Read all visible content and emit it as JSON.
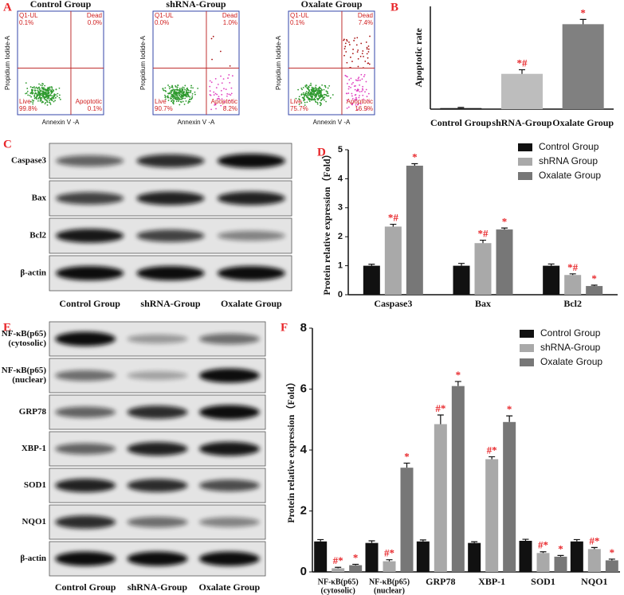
{
  "panel_labels": [
    "A",
    "B",
    "C",
    "D",
    "E",
    "F"
  ],
  "flow_panels": [
    {
      "title": "Control Group",
      "x_label": "Annexin V -A",
      "y_label": "Propidium Iodide-A",
      "quadrants": {
        "ul": [
          "Q1-UL",
          "0.1%"
        ],
        "ur": [
          "Dead",
          "0.0%"
        ],
        "ll": [
          "Live",
          "99.8%"
        ],
        "lr": [
          "Apoptotic",
          "0.1%"
        ]
      }
    },
    {
      "title": "shRNA-Group",
      "x_label": "Annexin V -A",
      "y_label": "Propidium Iodide-A",
      "quadrants": {
        "ul": [
          "Q1-UL",
          "0.0%"
        ],
        "ur": [
          "Dead",
          "1.0%"
        ],
        "ll": [
          "Live",
          "90.7%"
        ],
        "lr": [
          "Apoptotic",
          "8.2%"
        ]
      }
    },
    {
      "title": "Oxalate Group",
      "x_label": "Annexin V -A",
      "y_label": "Propidium Iodide-A",
      "quadrants": {
        "ul": [
          "Q1-UL",
          "0.1%"
        ],
        "ur": [
          "Dead",
          "7.4%"
        ],
        "ll": [
          "Live",
          "75.7%"
        ],
        "lr": [
          "Apoptotic",
          "16.9%"
        ]
      }
    }
  ],
  "blots": [
    {
      "rows": [
        [
          "Caspase3"
        ],
        [
          "Bax"
        ],
        [
          "Bcl2"
        ],
        [
          "β-actin"
        ]
      ],
      "columns": [
        "Control Group",
        "shRNA-Group",
        "Oxalate Group"
      ]
    },
    {
      "rows": [
        [
          "NF-κB(p65)",
          "(cytosolic)"
        ],
        [
          "NF-κB(p65)",
          "(nuclear)"
        ],
        [
          "GRP78"
        ],
        [
          "XBP-1"
        ],
        [
          "SOD1"
        ],
        [
          "NQO1"
        ],
        [
          "β-actin"
        ]
      ],
      "columns": [
        "Control Group",
        "shRNA-Group",
        "Oxalate Group"
      ]
    }
  ],
  "chart_data": [
    {
      "type": "bar",
      "ylabel": "Apoptotic rate",
      "categories": [
        "Control Group",
        "shRNA-Group",
        "Oxalate Group"
      ],
      "values": [
        0.3,
        10.3,
        24.8
      ],
      "errors": [
        0.2,
        1.2,
        1.4
      ],
      "colors": [
        "#1a1a1a",
        "#bdbdbd",
        "#808080"
      ],
      "annotations": [
        null,
        "*#",
        "*"
      ],
      "annotation_color": "#e8262a",
      "ylim": [
        0,
        30
      ]
    },
    {
      "type": "bar",
      "ylabel": "Protein relative expression（Fold）",
      "categories": [
        [
          "Caspase3"
        ],
        [
          "Bax"
        ],
        [
          "Bcl2"
        ]
      ],
      "series": [
        {
          "name": "Control Group",
          "color": "#111111",
          "values": [
            1.0,
            1.0,
            1.0
          ],
          "errors": [
            0.05,
            0.08,
            0.06
          ],
          "annotations": [
            null,
            null,
            null
          ]
        },
        {
          "name": "shRNA Group",
          "color": "#a9a9a9",
          "values": [
            2.35,
            1.78,
            0.68
          ],
          "errors": [
            0.08,
            0.1,
            0.04
          ],
          "annotations": [
            "*#",
            "*#",
            "*#"
          ]
        },
        {
          "name": "Oxalate Group",
          "color": "#777777",
          "values": [
            4.45,
            2.25,
            0.3
          ],
          "errors": [
            0.07,
            0.05,
            0.03
          ],
          "annotations": [
            "*",
            "*",
            "*"
          ]
        }
      ],
      "annotation_color": "#e8262a",
      "legend": "upper right",
      "ylim": [
        0,
        5
      ],
      "yticks": [
        0,
        1,
        2,
        3,
        4,
        5
      ]
    },
    {
      "type": "bar",
      "ylabel": "Protein relative expression（Fold）",
      "categories": [
        [
          "NF-κB(p65)",
          "(cytosolic)"
        ],
        [
          "NF-κB(p65)",
          "(nuclear)"
        ],
        [
          "GRP78"
        ],
        [
          "XBP-1"
        ],
        [
          "SOD1"
        ],
        [
          "NQO1"
        ]
      ],
      "series": [
        {
          "name": "Control Group",
          "color": "#111111",
          "values": [
            1.0,
            0.95,
            1.0,
            0.95,
            1.02,
            1.0
          ],
          "errors": [
            0.06,
            0.07,
            0.05,
            0.04,
            0.05,
            0.06
          ],
          "annotations": [
            null,
            null,
            null,
            null,
            null,
            null
          ]
        },
        {
          "name": "shRNA-Group",
          "color": "#a9a9a9",
          "values": [
            0.12,
            0.35,
            4.85,
            3.7,
            0.62,
            0.75
          ],
          "errors": [
            0.03,
            0.05,
            0.3,
            0.08,
            0.04,
            0.05
          ],
          "annotations": [
            "#*",
            "#*",
            "#*",
            "#*",
            "#*",
            "#*"
          ]
        },
        {
          "name": "Oxalate Group",
          "color": "#777777",
          "values": [
            0.22,
            3.42,
            6.1,
            4.92,
            0.5,
            0.38
          ],
          "errors": [
            0.03,
            0.15,
            0.15,
            0.2,
            0.04,
            0.04
          ],
          "annotations": [
            "*",
            "*",
            "*",
            "*",
            "*",
            "*"
          ]
        }
      ],
      "annotation_color": "#e8262a",
      "legend": "upper right",
      "ylim": [
        0,
        8
      ],
      "yticks": [
        0,
        2,
        4,
        6,
        8
      ]
    }
  ]
}
